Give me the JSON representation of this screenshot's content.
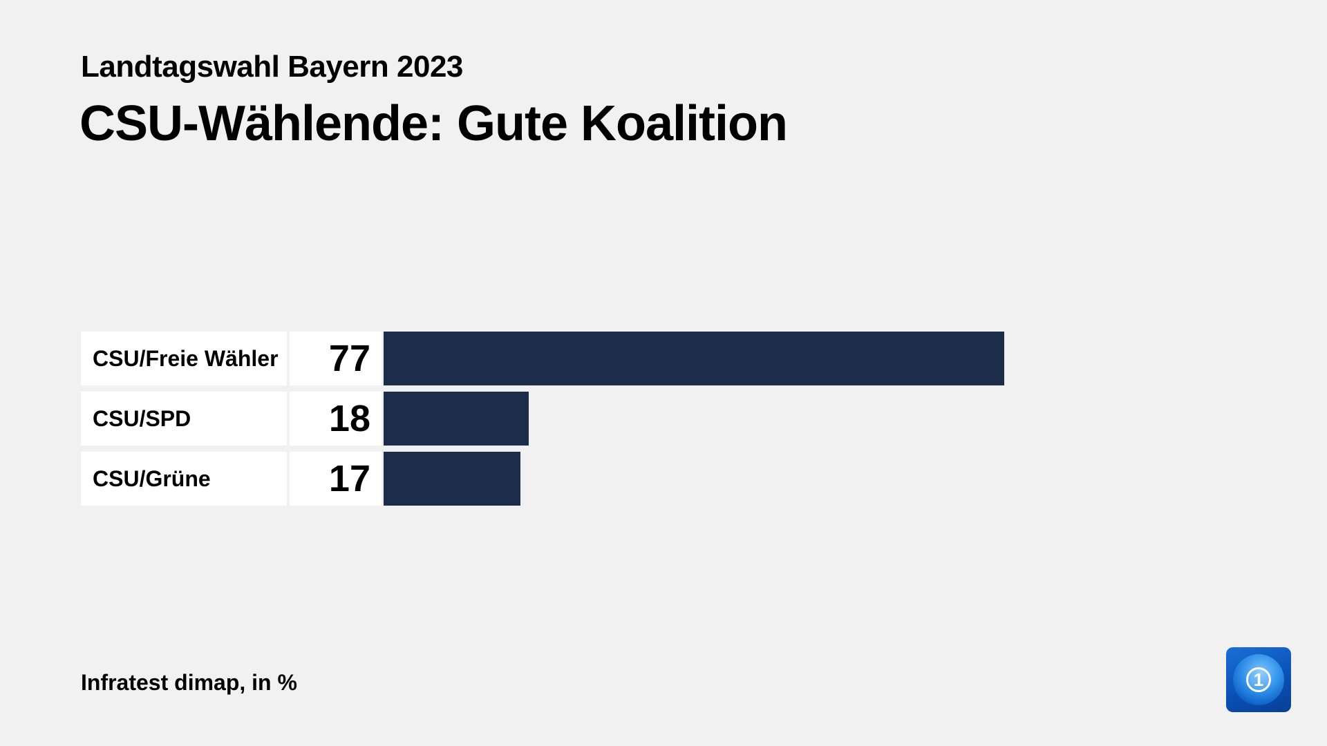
{
  "header": {
    "subtitle": "Landtagswahl Bayern 2023",
    "title": "CSU-Wählende: Gute Koalition"
  },
  "footer": {
    "source": "Infratest dimap, in %"
  },
  "logo": {
    "icon": "tagesschau-1-globe-icon",
    "glyph": "1"
  },
  "colors": {
    "background": "#f1f1f1",
    "bar": "#1b2d4a",
    "label_box": "#ffffff"
  },
  "chart_data": {
    "type": "bar",
    "orientation": "horizontal",
    "title": "CSU-Wählende: Gute Koalition",
    "subtitle": "Landtagswahl Bayern 2023",
    "categories": [
      "CSU/Freie Wähler",
      "CSU/SPD",
      "CSU/Grüne"
    ],
    "values": [
      77,
      18,
      17
    ],
    "unit": "%",
    "source": "Infratest dimap, in %",
    "xlabel": "",
    "ylabel": "",
    "grid": false,
    "legend": null,
    "xlim": [
      0,
      100
    ]
  }
}
